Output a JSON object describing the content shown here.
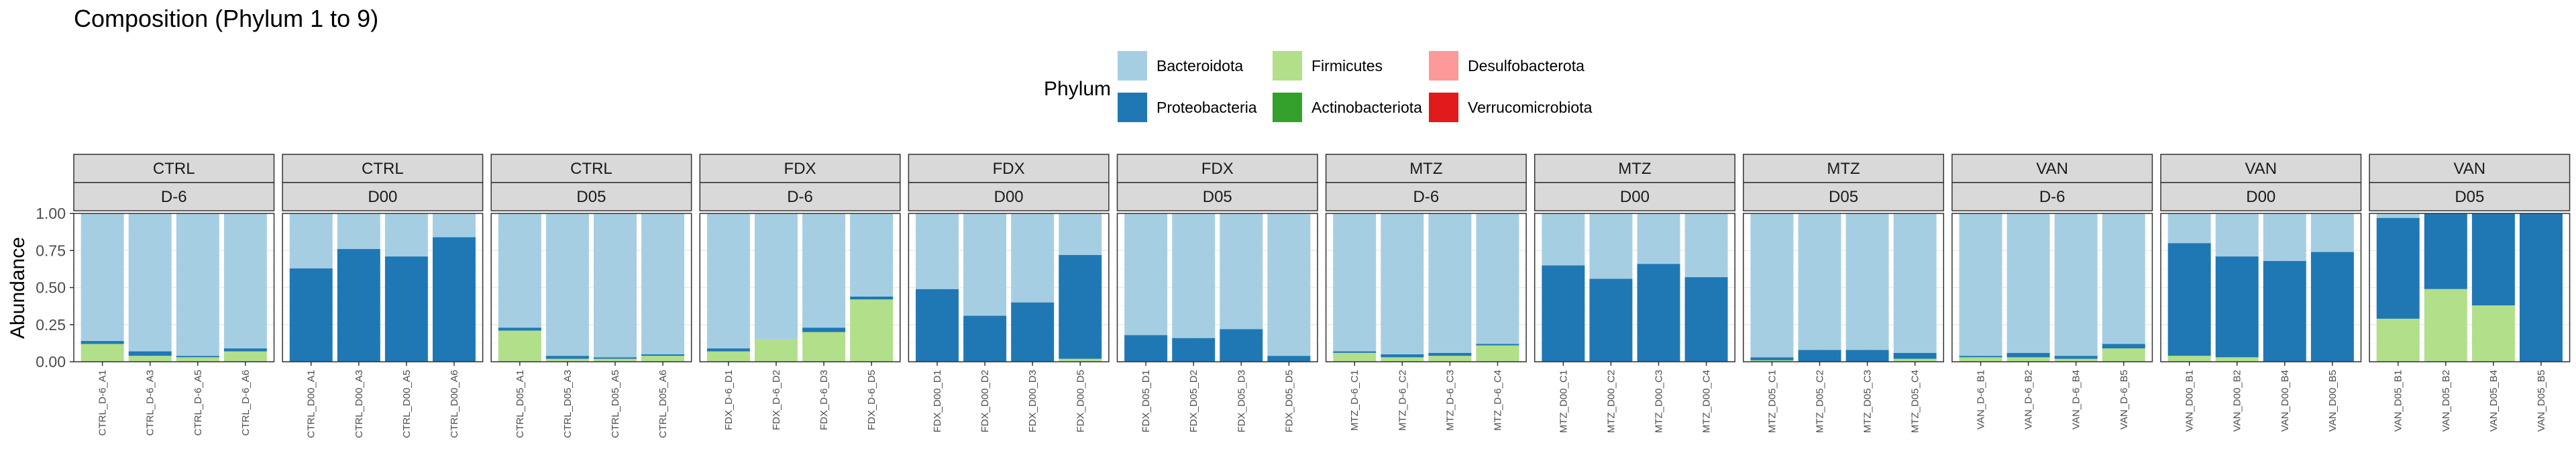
{
  "chart_data": {
    "type": "bar",
    "stacked": true,
    "title": "Composition (Phylum 1 to 9)",
    "ylabel": "Abundance",
    "xlabel": "",
    "ylim": [
      0,
      1
    ],
    "yticks": [
      "0.00",
      "0.25",
      "0.50",
      "0.75",
      "1.00"
    ],
    "grid": true,
    "legend": {
      "title": "Phylum",
      "position": "top",
      "entries": [
        {
          "name": "Bacteroidota",
          "color": "#a6cee3"
        },
        {
          "name": "Proteobacteria",
          "color": "#1f78b4"
        },
        {
          "name": "Firmicutes",
          "color": "#b2df8a"
        },
        {
          "name": "Actinobacteriota",
          "color": "#33a02c"
        },
        {
          "name": "Desulfobacterota",
          "color": "#fb9a99"
        },
        {
          "name": "Verrucomicrobiota",
          "color": "#e31a1c"
        }
      ]
    },
    "stack_order": [
      "Firmicutes",
      "Proteobacteria",
      "Bacteroidota"
    ],
    "panels": [
      {
        "group": "CTRL",
        "time": "D-6",
        "samples": [
          {
            "label": "CTRL_D-6_A1",
            "Firmicutes": 0.12,
            "Proteobacteria": 0.02,
            "Bacteroidota": 0.86
          },
          {
            "label": "CTRL_D-6_A3",
            "Firmicutes": 0.04,
            "Proteobacteria": 0.03,
            "Bacteroidota": 0.93
          },
          {
            "label": "CTRL_D-6_A5",
            "Firmicutes": 0.03,
            "Proteobacteria": 0.01,
            "Bacteroidota": 0.96
          },
          {
            "label": "CTRL_D-6_A6",
            "Firmicutes": 0.07,
            "Proteobacteria": 0.02,
            "Bacteroidota": 0.91
          }
        ]
      },
      {
        "group": "CTRL",
        "time": "D00",
        "samples": [
          {
            "label": "CTRL_D00_A1",
            "Firmicutes": 0.0,
            "Proteobacteria": 0.63,
            "Bacteroidota": 0.37
          },
          {
            "label": "CTRL_D00_A3",
            "Firmicutes": 0.0,
            "Proteobacteria": 0.76,
            "Bacteroidota": 0.24
          },
          {
            "label": "CTRL_D00_A5",
            "Firmicutes": 0.0,
            "Proteobacteria": 0.71,
            "Bacteroidota": 0.29
          },
          {
            "label": "CTRL_D00_A6",
            "Firmicutes": 0.0,
            "Proteobacteria": 0.84,
            "Bacteroidota": 0.16
          }
        ]
      },
      {
        "group": "CTRL",
        "time": "D05",
        "samples": [
          {
            "label": "CTRL_D05_A1",
            "Firmicutes": 0.21,
            "Proteobacteria": 0.02,
            "Bacteroidota": 0.77
          },
          {
            "label": "CTRL_D05_A3",
            "Firmicutes": 0.02,
            "Proteobacteria": 0.02,
            "Bacteroidota": 0.96
          },
          {
            "label": "CTRL_D05_A5",
            "Firmicutes": 0.02,
            "Proteobacteria": 0.01,
            "Bacteroidota": 0.97
          },
          {
            "label": "CTRL_D05_A6",
            "Firmicutes": 0.04,
            "Proteobacteria": 0.01,
            "Bacteroidota": 0.95
          }
        ]
      },
      {
        "group": "FDX",
        "time": "D-6",
        "samples": [
          {
            "label": "FDX_D-6_D1",
            "Firmicutes": 0.07,
            "Proteobacteria": 0.02,
            "Bacteroidota": 0.91
          },
          {
            "label": "FDX_D-6_D2",
            "Firmicutes": 0.15,
            "Proteobacteria": 0.0,
            "Bacteroidota": 0.85
          },
          {
            "label": "FDX_D-6_D3",
            "Firmicutes": 0.2,
            "Proteobacteria": 0.03,
            "Bacteroidota": 0.77
          },
          {
            "label": "FDX_D-6_D5",
            "Firmicutes": 0.42,
            "Proteobacteria": 0.02,
            "Bacteroidota": 0.56
          }
        ]
      },
      {
        "group": "FDX",
        "time": "D00",
        "samples": [
          {
            "label": "FDX_D00_D1",
            "Firmicutes": 0.0,
            "Proteobacteria": 0.49,
            "Bacteroidota": 0.51
          },
          {
            "label": "FDX_D00_D2",
            "Firmicutes": 0.0,
            "Proteobacteria": 0.31,
            "Bacteroidota": 0.69
          },
          {
            "label": "FDX_D00_D3",
            "Firmicutes": 0.0,
            "Proteobacteria": 0.4,
            "Bacteroidota": 0.6
          },
          {
            "label": "FDX_D00_D5",
            "Firmicutes": 0.02,
            "Proteobacteria": 0.7,
            "Bacteroidota": 0.28
          }
        ]
      },
      {
        "group": "FDX",
        "time": "D05",
        "samples": [
          {
            "label": "FDX_D05_D1",
            "Firmicutes": 0.0,
            "Proteobacteria": 0.18,
            "Bacteroidota": 0.82
          },
          {
            "label": "FDX_D05_D2",
            "Firmicutes": 0.0,
            "Proteobacteria": 0.16,
            "Bacteroidota": 0.84
          },
          {
            "label": "FDX_D05_D3",
            "Firmicutes": 0.0,
            "Proteobacteria": 0.22,
            "Bacteroidota": 0.78
          },
          {
            "label": "FDX_D05_D5",
            "Firmicutes": 0.0,
            "Proteobacteria": 0.04,
            "Bacteroidota": 0.96
          }
        ]
      },
      {
        "group": "MTZ",
        "time": "D-6",
        "samples": [
          {
            "label": "MTZ_D-6_C1",
            "Firmicutes": 0.06,
            "Proteobacteria": 0.01,
            "Bacteroidota": 0.93
          },
          {
            "label": "MTZ_D-6_C2",
            "Firmicutes": 0.03,
            "Proteobacteria": 0.02,
            "Bacteroidota": 0.95
          },
          {
            "label": "MTZ_D-6_C3",
            "Firmicutes": 0.04,
            "Proteobacteria": 0.02,
            "Bacteroidota": 0.94
          },
          {
            "label": "MTZ_D-6_C4",
            "Firmicutes": 0.11,
            "Proteobacteria": 0.01,
            "Bacteroidota": 0.88
          }
        ]
      },
      {
        "group": "MTZ",
        "time": "D00",
        "samples": [
          {
            "label": "MTZ_D00_C1",
            "Firmicutes": 0.0,
            "Proteobacteria": 0.65,
            "Bacteroidota": 0.35
          },
          {
            "label": "MTZ_D00_C2",
            "Firmicutes": 0.0,
            "Proteobacteria": 0.56,
            "Bacteroidota": 0.44
          },
          {
            "label": "MTZ_D00_C3",
            "Firmicutes": 0.0,
            "Proteobacteria": 0.66,
            "Bacteroidota": 0.34
          },
          {
            "label": "MTZ_D00_C4",
            "Firmicutes": 0.0,
            "Proteobacteria": 0.57,
            "Bacteroidota": 0.43
          }
        ]
      },
      {
        "group": "MTZ",
        "time": "D05",
        "samples": [
          {
            "label": "MTZ_D05_C1",
            "Firmicutes": 0.01,
            "Proteobacteria": 0.02,
            "Bacteroidota": 0.97
          },
          {
            "label": "MTZ_D05_C2",
            "Firmicutes": 0.0,
            "Proteobacteria": 0.08,
            "Bacteroidota": 0.92
          },
          {
            "label": "MTZ_D05_C3",
            "Firmicutes": 0.0,
            "Proteobacteria": 0.08,
            "Bacteroidota": 0.92
          },
          {
            "label": "MTZ_D05_C4",
            "Firmicutes": 0.02,
            "Proteobacteria": 0.04,
            "Bacteroidota": 0.94
          }
        ]
      },
      {
        "group": "VAN",
        "time": "D-6",
        "samples": [
          {
            "label": "VAN_D-6_B1",
            "Firmicutes": 0.03,
            "Proteobacteria": 0.01,
            "Bacteroidota": 0.96
          },
          {
            "label": "VAN_D-6_B2",
            "Firmicutes": 0.03,
            "Proteobacteria": 0.03,
            "Bacteroidota": 0.94
          },
          {
            "label": "VAN_D-6_B4",
            "Firmicutes": 0.02,
            "Proteobacteria": 0.02,
            "Bacteroidota": 0.96
          },
          {
            "label": "VAN_D-6_B5",
            "Firmicutes": 0.09,
            "Proteobacteria": 0.03,
            "Bacteroidota": 0.88
          }
        ]
      },
      {
        "group": "VAN",
        "time": "D00",
        "samples": [
          {
            "label": "VAN_D00_B1",
            "Firmicutes": 0.04,
            "Proteobacteria": 0.76,
            "Bacteroidota": 0.2
          },
          {
            "label": "VAN_D00_B2",
            "Firmicutes": 0.03,
            "Proteobacteria": 0.68,
            "Bacteroidota": 0.29
          },
          {
            "label": "VAN_D00_B4",
            "Firmicutes": 0.0,
            "Proteobacteria": 0.68,
            "Bacteroidota": 0.32
          },
          {
            "label": "VAN_D00_B5",
            "Firmicutes": 0.0,
            "Proteobacteria": 0.74,
            "Bacteroidota": 0.26
          }
        ]
      },
      {
        "group": "VAN",
        "time": "D05",
        "samples": [
          {
            "label": "VAN_D05_B1",
            "Firmicutes": 0.29,
            "Proteobacteria": 0.68,
            "Bacteroidota": 0.03
          },
          {
            "label": "VAN_D05_B2",
            "Firmicutes": 0.49,
            "Proteobacteria": 0.51,
            "Bacteroidota": 0.0
          },
          {
            "label": "VAN_D05_B4",
            "Firmicutes": 0.38,
            "Proteobacteria": 0.62,
            "Bacteroidota": 0.0
          },
          {
            "label": "VAN_D05_B5",
            "Firmicutes": 0.0,
            "Proteobacteria": 1.0,
            "Bacteroidota": 0.0
          }
        ]
      }
    ]
  }
}
